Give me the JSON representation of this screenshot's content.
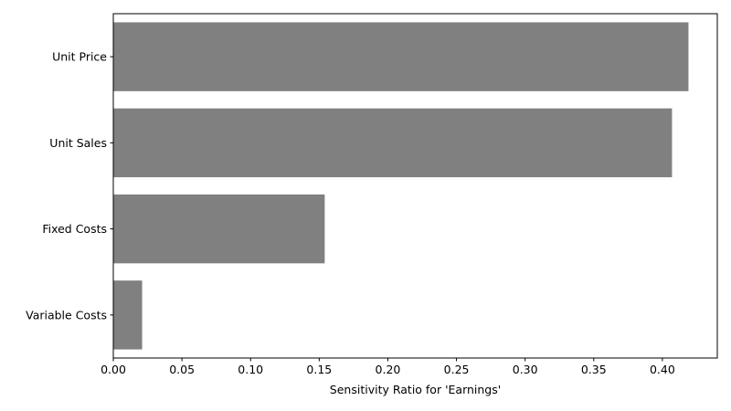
{
  "chart_data": {
    "type": "bar",
    "orientation": "horizontal",
    "categories": [
      "Unit Price",
      "Unit Sales",
      "Fixed Costs",
      "Variable Costs"
    ],
    "values": [
      0.419,
      0.407,
      0.154,
      0.021
    ],
    "title": "",
    "xlabel": "Sensitivity Ratio for 'Earnings'",
    "ylabel": "",
    "xlim": [
      0,
      0.44
    ],
    "xticks": [
      0.0,
      0.05,
      0.1,
      0.15,
      0.2,
      0.25,
      0.3,
      0.35,
      0.4
    ],
    "xtick_labels": [
      "0.00",
      "0.05",
      "0.10",
      "0.15",
      "0.20",
      "0.25",
      "0.30",
      "0.35",
      "0.40"
    ],
    "grid": false,
    "legend": "none",
    "bar_color": "#808080"
  }
}
